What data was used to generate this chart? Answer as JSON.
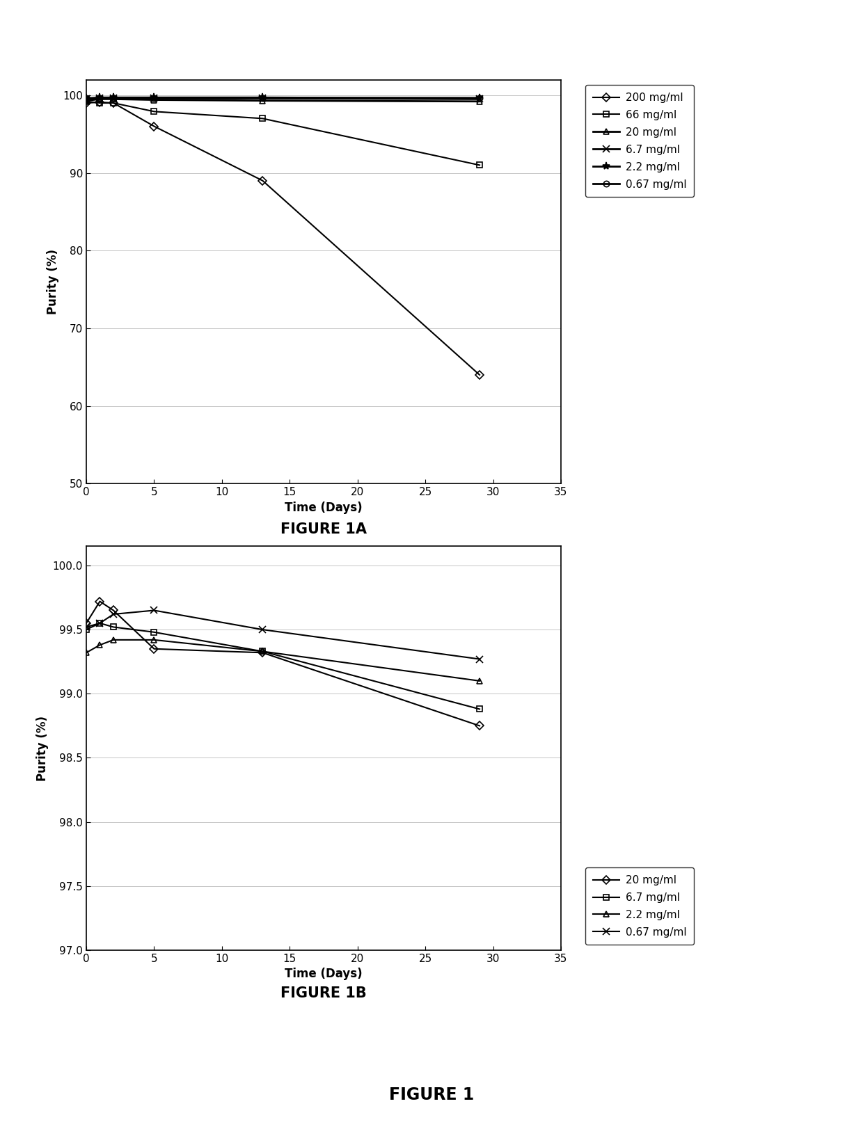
{
  "fig1a": {
    "series": [
      {
        "label": "200 mg/ml",
        "x": [
          0,
          1,
          2,
          5,
          13,
          29
        ],
        "y": [
          99.0,
          99.1,
          99.0,
          96.0,
          89.0,
          64.0
        ],
        "marker": "D",
        "markersize": 6,
        "linewidth": 1.5,
        "mfc": "none"
      },
      {
        "label": "66 mg/ml",
        "x": [
          0,
          1,
          2,
          5,
          13,
          29
        ],
        "y": [
          99.2,
          99.0,
          99.0,
          97.9,
          97.0,
          91.0
        ],
        "marker": "s",
        "markersize": 6,
        "linewidth": 1.5,
        "mfc": "none"
      },
      {
        "label": "20 mg/ml",
        "x": [
          0,
          1,
          2,
          5,
          13,
          29
        ],
        "y": [
          99.3,
          99.5,
          99.5,
          99.4,
          99.3,
          99.2
        ],
        "marker": "^",
        "markersize": 6,
        "linewidth": 2.0,
        "mfc": "none"
      },
      {
        "label": "6.7 mg/ml",
        "x": [
          0,
          1,
          2,
          5,
          13,
          29
        ],
        "y": [
          99.5,
          99.6,
          99.6,
          99.6,
          99.6,
          99.5
        ],
        "marker": "x",
        "markersize": 7,
        "linewidth": 2.0,
        "mfc": "black"
      },
      {
        "label": "2.2 mg/ml",
        "x": [
          0,
          1,
          2,
          5,
          13,
          29
        ],
        "y": [
          99.6,
          99.7,
          99.7,
          99.7,
          99.7,
          99.6
        ],
        "marker": "*",
        "markersize": 8,
        "linewidth": 2.0,
        "mfc": "black"
      },
      {
        "label": "0.67 mg/ml",
        "x": [
          0,
          1,
          2,
          5,
          13,
          29
        ],
        "y": [
          99.5,
          99.6,
          99.6,
          99.6,
          99.65,
          99.65
        ],
        "marker": "o",
        "markersize": 6,
        "linewidth": 2.0,
        "mfc": "none"
      }
    ],
    "ylabel": "Purity (%)",
    "xlabel": "Time (Days)",
    "ylim": [
      50,
      102
    ],
    "yticks": [
      50,
      60,
      70,
      80,
      90,
      100
    ],
    "xlim": [
      0,
      35
    ],
    "xticks": [
      0,
      5,
      10,
      15,
      20,
      25,
      30,
      35
    ],
    "figure_label": "FIGURE 1A"
  },
  "fig1b": {
    "series": [
      {
        "label": "20 mg/ml",
        "x": [
          0,
          1,
          2,
          5,
          13,
          29
        ],
        "y": [
          99.55,
          99.72,
          99.65,
          99.35,
          99.32,
          98.75
        ],
        "marker": "D",
        "markersize": 6,
        "linewidth": 1.5,
        "mfc": "none"
      },
      {
        "label": "6.7 mg/ml",
        "x": [
          0,
          1,
          2,
          5,
          13,
          29
        ],
        "y": [
          99.5,
          99.55,
          99.52,
          99.48,
          99.33,
          98.88
        ],
        "marker": "s",
        "markersize": 6,
        "linewidth": 1.5,
        "mfc": "none"
      },
      {
        "label": "2.2 mg/ml",
        "x": [
          0,
          1,
          2,
          5,
          13,
          29
        ],
        "y": [
          99.32,
          99.38,
          99.42,
          99.42,
          99.33,
          99.1
        ],
        "marker": "^",
        "markersize": 6,
        "linewidth": 1.5,
        "mfc": "none"
      },
      {
        "label": "0.67 mg/ml",
        "x": [
          0,
          1,
          2,
          5,
          13,
          29
        ],
        "y": [
          99.52,
          99.55,
          99.62,
          99.65,
          99.5,
          99.27
        ],
        "marker": "x",
        "markersize": 7,
        "linewidth": 1.5,
        "mfc": "black"
      }
    ],
    "ylabel": "Purity (%)",
    "xlabel": "Time (Days)",
    "ylim": [
      97.0,
      100.15
    ],
    "yticks": [
      97.0,
      97.5,
      98.0,
      98.5,
      99.0,
      99.5,
      100.0
    ],
    "xlim": [
      0,
      35
    ],
    "xticks": [
      0,
      5,
      10,
      15,
      20,
      25,
      30,
      35
    ],
    "figure_label": "FIGURE 1B"
  },
  "figure_label": "FIGURE 1",
  "color": "#000000",
  "bg_color": "#ffffff"
}
